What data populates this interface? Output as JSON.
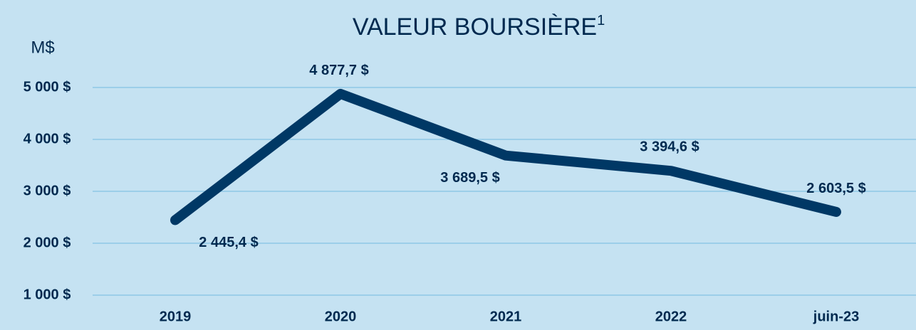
{
  "chart_data": {
    "type": "line",
    "title": "VALEUR BOURSIÈRE",
    "title_superscript": "1",
    "y_label": "M$",
    "categories": [
      "2019",
      "2020",
      "2021",
      "2022",
      "juin-23"
    ],
    "series": [
      {
        "name": "Valeur boursière",
        "color": "#003865",
        "values": [
          2445.4,
          4877.7,
          3689.5,
          3394.6,
          2603.5
        ],
        "value_labels": [
          "2 445,4 $",
          "4 877,7 $",
          "3 689,5 $",
          "3 394,6 $",
          "2 603,5 $"
        ]
      }
    ],
    "ylim": [
      1000,
      6000
    ],
    "yticks": [
      {
        "value": 1000,
        "label": "1 000 $"
      },
      {
        "value": 2000,
        "label": "2 000 $"
      },
      {
        "value": 3000,
        "label": "3 000 $"
      },
      {
        "value": 4000,
        "label": "4 000 $"
      },
      {
        "value": 5000,
        "label": "5 000 $"
      }
    ],
    "grid": true
  }
}
